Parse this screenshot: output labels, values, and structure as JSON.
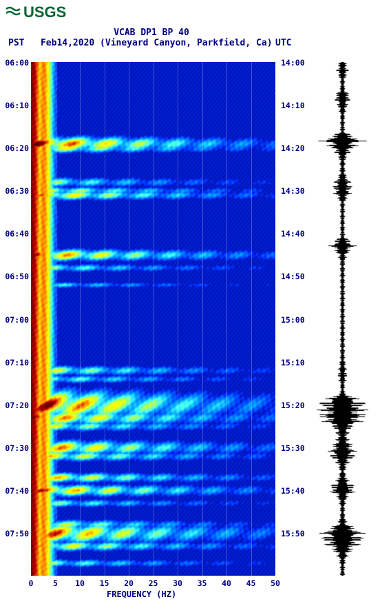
{
  "logo_text": "USGS",
  "title_line1": "VCAB DP1 BP 40",
  "title_pst": "PST",
  "title_date": "Feb14,2020 (Vineyard Canyon, Parkfield, Ca)",
  "title_utc": "UTC",
  "axis": {
    "x_label": "FREQUENCY (HZ)",
    "x_ticks": [
      0,
      5,
      10,
      15,
      20,
      25,
      30,
      35,
      40,
      45,
      50
    ],
    "y_left_ticks": [
      "06:00",
      "06:10",
      "06:20",
      "06:30",
      "06:40",
      "06:50",
      "07:00",
      "07:10",
      "07:20",
      "07:30",
      "07:40",
      "07:50"
    ],
    "y_right_ticks": [
      "14:00",
      "14:10",
      "14:20",
      "14:30",
      "14:40",
      "14:50",
      "15:00",
      "15:10",
      "15:20",
      "15:30",
      "15:40",
      "15:50"
    ]
  },
  "chart": {
    "type": "spectrogram",
    "time_range_minutes": 120,
    "freq_range": [
      0,
      50
    ],
    "background_color": "#0808c0",
    "colorbar": [
      "#000080",
      "#0030ff",
      "#00a0ff",
      "#40ffff",
      "#c0ff40",
      "#ffff00",
      "#ff8000",
      "#c00000",
      "#600000"
    ],
    "events": [
      {
        "t": 19,
        "intensity": 0.95,
        "width": 1.5
      },
      {
        "t": 20,
        "intensity": 0.7,
        "width": 1
      },
      {
        "t": 28,
        "intensity": 0.5,
        "width": 1
      },
      {
        "t": 30,
        "intensity": 0.6,
        "width": 0.8
      },
      {
        "t": 31,
        "intensity": 0.75,
        "width": 1
      },
      {
        "t": 45,
        "intensity": 0.85,
        "width": 1.2
      },
      {
        "t": 48,
        "intensity": 0.5,
        "width": 0.8
      },
      {
        "t": 52,
        "intensity": 0.4,
        "width": 0.6
      },
      {
        "t": 72,
        "intensity": 0.6,
        "width": 1
      },
      {
        "t": 74,
        "intensity": 0.5,
        "width": 0.8
      },
      {
        "t": 80,
        "intensity": 0.98,
        "width": 3
      },
      {
        "t": 83,
        "intensity": 0.85,
        "width": 1.5
      },
      {
        "t": 85,
        "intensity": 0.6,
        "width": 1
      },
      {
        "t": 90,
        "intensity": 0.85,
        "width": 1.5
      },
      {
        "t": 92,
        "intensity": 0.7,
        "width": 1
      },
      {
        "t": 97,
        "intensity": 0.75,
        "width": 1
      },
      {
        "t": 100,
        "intensity": 0.85,
        "width": 1.2
      },
      {
        "t": 103,
        "intensity": 0.5,
        "width": 0.8
      },
      {
        "t": 108,
        "intensity": 0.6,
        "width": 1
      },
      {
        "t": 110,
        "intensity": 0.92,
        "width": 2
      },
      {
        "t": 113,
        "intensity": 0.7,
        "width": 1
      },
      {
        "t": 117,
        "intensity": 0.5,
        "width": 0.8
      }
    ],
    "seismogram_amp": [
      0.15,
      0.25,
      0.1,
      0.1,
      0.35,
      0.2,
      0.1,
      0.1,
      0.1,
      0.9,
      0.4,
      0.15,
      0.1,
      0.15,
      0.4,
      0.35,
      0.1,
      0.1,
      0.1,
      0.1,
      0.1,
      0.55,
      0.2,
      0.1,
      0.1,
      0.1,
      0.1,
      0.1,
      0.1,
      0.1,
      0.1,
      0.1,
      0.1,
      0.1,
      0.1,
      0.15,
      0.2,
      0.1,
      0.1,
      0.95,
      0.95,
      0.9,
      0.35,
      0.2,
      0.4,
      0.6,
      0.25,
      0.1,
      0.25,
      0.6,
      0.2,
      0.1,
      0.1,
      0.2,
      0.85,
      0.85,
      0.4,
      0.15,
      0.1,
      0.1
    ]
  }
}
